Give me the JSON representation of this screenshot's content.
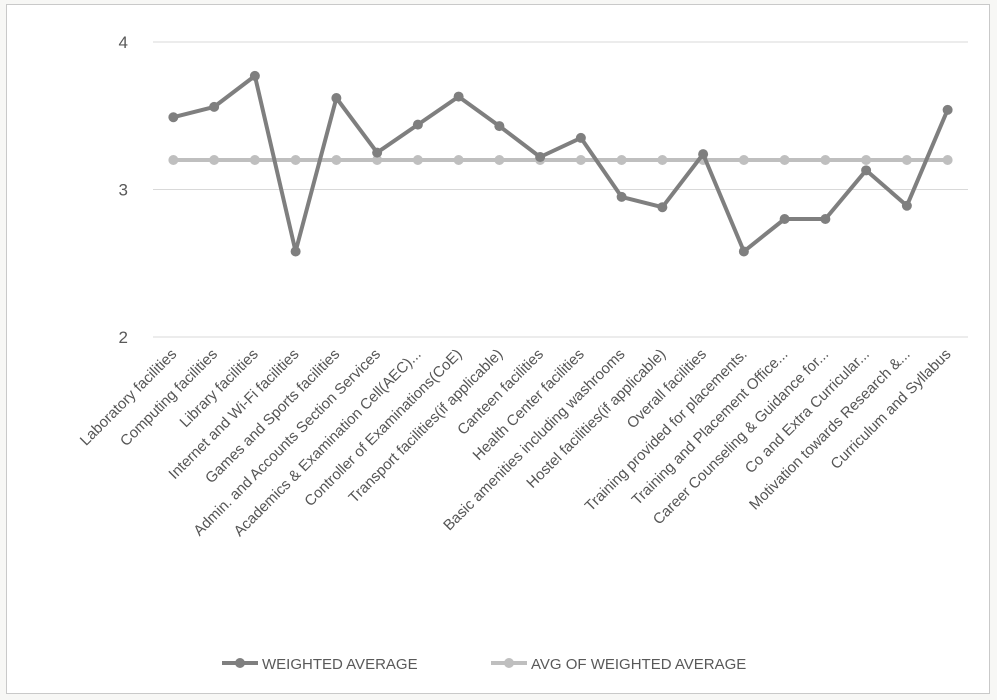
{
  "chart_data": {
    "type": "line",
    "title": "",
    "xlabel": "",
    "ylabel": "",
    "ylim": [
      2,
      4
    ],
    "yticks": [
      2,
      3,
      4
    ],
    "grid": true,
    "legend_position": "bottom",
    "categories": [
      "Laboratory facilities",
      "Computing facilities",
      "Library facilities",
      "Internet and Wi-Fi facilities",
      "Games and Sports facilities",
      "Admin. and Accounts Section Services",
      "Academics & Examination Cell(AEC)...",
      "Controller of Examinations(CoE)",
      "Transport facilities(if applicable)",
      "Canteen facilities",
      "Health Center facilities",
      "Basic amenities including washrooms",
      "Hostel facilities(if applicable)",
      "Overall facilities",
      "Training provided for placements.",
      "Training and Placement Office...",
      "Career Counseling & Guidance for...",
      "Co and Extra Curricular...",
      "Motivation towards Research &...",
      "Curriculum and Syllabus"
    ],
    "series": [
      {
        "name": "WEIGHTED AVERAGE",
        "color": "#7f7f7f",
        "values": [
          3.49,
          3.56,
          3.77,
          2.58,
          3.62,
          3.25,
          3.44,
          3.63,
          3.43,
          3.22,
          3.35,
          2.95,
          2.88,
          3.24,
          2.58,
          2.8,
          2.8,
          3.13,
          2.89,
          3.54
        ]
      },
      {
        "name": "AVG OF WEIGHTED AVERAGE",
        "color": "#bfbfbf",
        "values": [
          3.2,
          3.2,
          3.2,
          3.2,
          3.2,
          3.2,
          3.2,
          3.2,
          3.2,
          3.2,
          3.2,
          3.2,
          3.2,
          3.2,
          3.2,
          3.2,
          3.2,
          3.2,
          3.2,
          3.2
        ]
      }
    ]
  }
}
